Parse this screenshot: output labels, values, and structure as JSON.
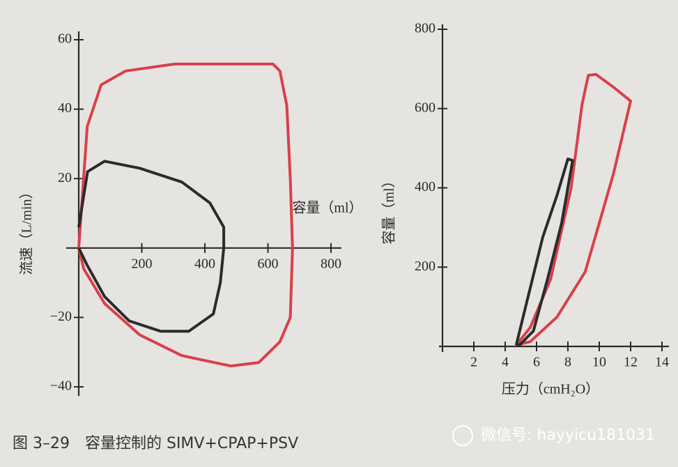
{
  "chart_data": [
    {
      "type": "line",
      "xlabel": "容量（ml）",
      "ylabel": "流速（L/min）",
      "xlim": [
        0,
        800
      ],
      "xticks": [
        200,
        400,
        600,
        800
      ],
      "ylim": [
        -40,
        60
      ],
      "yticks": [
        60,
        40,
        20,
        {
          "value": -20,
          "label": "−20"
        },
        {
          "value": -40,
          "label": "−40"
        }
      ],
      "series": [
        {
          "color": "#d9404a",
          "x": [
            0,
            27,
            71,
            149,
            304,
            616,
            638,
            660,
            671,
            678,
            671,
            638,
            571,
            482,
            327,
            193,
            82,
            16,
            0
          ],
          "values": [
            0,
            35,
            47,
            51,
            53,
            53,
            51,
            41,
            20,
            0,
            -20,
            -27,
            -33,
            -34,
            -31,
            -25,
            -16,
            -6,
            0
          ]
        },
        {
          "color": "#2b2b2b",
          "x": [
            0,
            28,
            82,
            193,
            327,
            416,
            460,
            460,
            449,
            427,
            349,
            260,
            160,
            82,
            27,
            0
          ],
          "values": [
            6,
            22,
            25,
            23,
            19,
            13,
            6,
            0,
            -10,
            -19,
            -24,
            -24,
            -21,
            -14,
            -5,
            0
          ]
        }
      ]
    },
    {
      "type": "line",
      "xlabel": "压力（cmH₂O）",
      "ylabel": "容量（ml）",
      "xlim": [
        0,
        14
      ],
      "xticks": [
        2,
        4,
        6,
        8,
        10,
        12,
        14
      ],
      "ylim": [
        0,
        800
      ],
      "yticks": [
        200,
        400,
        600,
        800
      ],
      "series": [
        {
          "color": "#d9404a",
          "x": [
            4.7,
            5.6,
            6.9,
            8.2,
            8.9,
            9.3,
            9.8,
            10.9,
            12.0,
            10.9,
            9.1,
            7.3,
            5.6,
            4.7
          ],
          "values": [
            3,
            48,
            170,
            399,
            610,
            684,
            686,
            654,
            619,
            435,
            188,
            74,
            12,
            3
          ]
        },
        {
          "color": "#2b2b2b",
          "x": [
            4.7,
            5.3,
            6.4,
            7.3,
            8.0,
            8.3,
            7.6,
            6.7,
            5.8,
            4.9,
            4.7
          ],
          "values": [
            3,
            100,
            276,
            381,
            473,
            469,
            311,
            170,
            39,
            3,
            3
          ]
        }
      ]
    }
  ],
  "caption": "图 3–29　容量控制的 SIMV+CPAP+PSV",
  "watermark": "微信号: hayyicu181031"
}
